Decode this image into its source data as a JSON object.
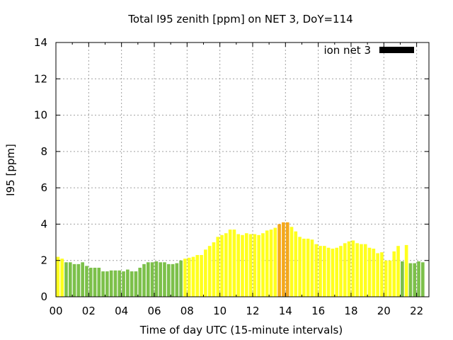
{
  "chart_data": {
    "type": "bar",
    "title": "Total I95 zenith [ppm] on NET 3, DoY=114",
    "xlabel": "Time of day UTC (15-minute intervals)",
    "ylabel": "I95 [ppm]",
    "xlim": [
      0,
      22.75
    ],
    "ylim": [
      0,
      14
    ],
    "x_ticks": [
      "00",
      "02",
      "04",
      "06",
      "08",
      "10",
      "12",
      "14",
      "16",
      "18",
      "20",
      "22"
    ],
    "y_ticks": [
      "0",
      "2",
      "4",
      "6",
      "8",
      "10",
      "12",
      "14"
    ],
    "grid": true,
    "legend": {
      "label": "ion net 3",
      "color": "#000000",
      "placement": "top-right"
    },
    "interval_hours": 0.25,
    "colors": {
      "green": "#7cc04a",
      "yellow": "#ffff1e",
      "orange": "#f5a81b"
    },
    "values": [
      2.2,
      2.1,
      1.9,
      1.9,
      1.8,
      1.8,
      1.9,
      1.7,
      1.6,
      1.6,
      1.6,
      1.4,
      1.4,
      1.45,
      1.45,
      1.45,
      1.4,
      1.5,
      1.4,
      1.4,
      1.6,
      1.8,
      1.9,
      1.9,
      1.95,
      1.9,
      1.9,
      1.8,
      1.8,
      1.85,
      2.0,
      2.1,
      2.15,
      2.2,
      2.3,
      2.3,
      2.6,
      2.8,
      3.0,
      3.3,
      3.4,
      3.5,
      3.7,
      3.7,
      3.45,
      3.4,
      3.5,
      3.45,
      3.45,
      3.4,
      3.5,
      3.65,
      3.7,
      3.8,
      4.0,
      4.1,
      4.1,
      3.85,
      3.6,
      3.3,
      3.2,
      3.2,
      3.15,
      2.9,
      2.8,
      2.8,
      2.7,
      2.65,
      2.7,
      2.8,
      2.95,
      3.05,
      3.1,
      2.95,
      2.9,
      2.9,
      2.7,
      2.65,
      2.4,
      2.45,
      2.0,
      2.0,
      2.5,
      2.8,
      1.95,
      2.85,
      1.85,
      1.85,
      1.95,
      1.9
    ],
    "bar_colors": [
      "yellow",
      "yellow",
      "green",
      "green",
      "green",
      "green",
      "green",
      "green",
      "green",
      "green",
      "green",
      "green",
      "green",
      "green",
      "green",
      "green",
      "green",
      "green",
      "green",
      "green",
      "green",
      "green",
      "green",
      "green",
      "green",
      "green",
      "green",
      "green",
      "green",
      "green",
      "green",
      "yellow",
      "yellow",
      "yellow",
      "yellow",
      "yellow",
      "yellow",
      "yellow",
      "yellow",
      "yellow",
      "yellow",
      "yellow",
      "yellow",
      "yellow",
      "yellow",
      "yellow",
      "yellow",
      "yellow",
      "yellow",
      "yellow",
      "yellow",
      "yellow",
      "yellow",
      "yellow",
      "orange",
      "orange",
      "orange",
      "yellow",
      "yellow",
      "yellow",
      "yellow",
      "yellow",
      "yellow",
      "yellow",
      "yellow",
      "yellow",
      "yellow",
      "yellow",
      "yellow",
      "yellow",
      "yellow",
      "yellow",
      "yellow",
      "yellow",
      "yellow",
      "yellow",
      "yellow",
      "yellow",
      "yellow",
      "yellow",
      "yellow",
      "yellow",
      "yellow",
      "yellow",
      "green",
      "yellow",
      "green",
      "green",
      "green",
      "green"
    ]
  }
}
